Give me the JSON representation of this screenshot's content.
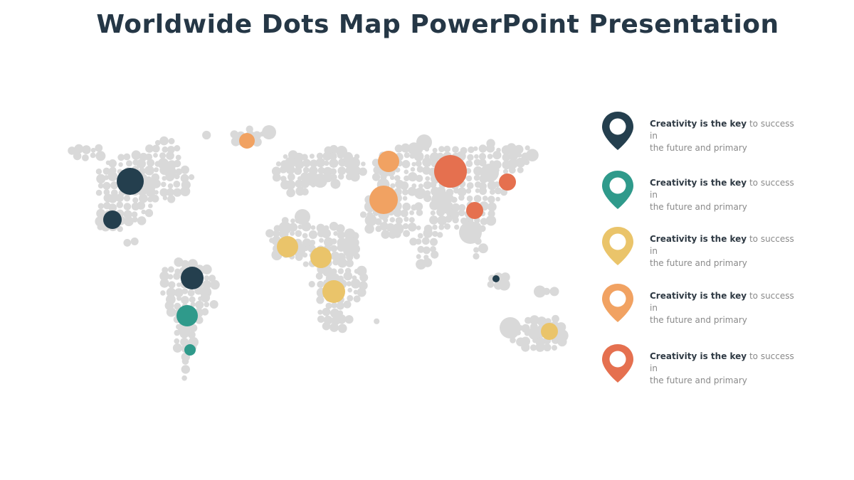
{
  "title": "Worldwide Dots Map PowerPoint Presentation",
  "colors": {
    "dot_base": "#d9d9d9",
    "navy": "#243f4e",
    "teal": "#2f9a8b",
    "yellow": "#eac46a",
    "orange": "#f1a262",
    "red": "#e5704f"
  },
  "legend": [
    {
      "icon": "map-pin-icon",
      "color": "#243f4e",
      "bold": "Creativity is the key",
      "rest": " to success in",
      "line2": "the future and primary"
    },
    {
      "icon": "map-pin-icon",
      "color": "#2f9a8b",
      "bold": "Creativity is the key",
      "rest": " to success in",
      "line2": "the future and primary"
    },
    {
      "icon": "map-pin-icon",
      "color": "#eac46a",
      "bold": "Creativity is the key",
      "rest": " to success in",
      "line2": "the future and primary"
    },
    {
      "icon": "map-pin-icon",
      "color": "#f1a262",
      "bold": "Creativity is the key",
      "rest": " to success in",
      "line2": "the future and primary"
    },
    {
      "icon": "map-pin-icon",
      "color": "#e5704f",
      "bold": "Creativity is the key",
      "rest": " to success in",
      "line2": "the future and primary"
    }
  ]
}
